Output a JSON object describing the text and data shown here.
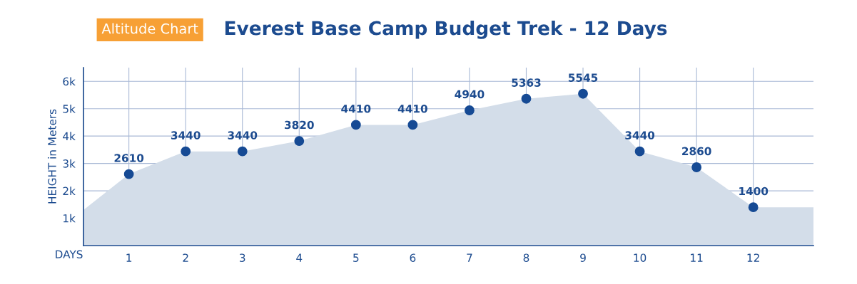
{
  "chart_data": {
    "type": "area",
    "title": "Everest Base Camp Budget Trek - 12 Days",
    "annotations": [
      "Altitude Chart"
    ],
    "xlabel": "DAYS",
    "ylabel": "HEIGHT in Meters",
    "series": [
      {
        "color": "#d3dde9",
        "x": [
          0.2,
          1,
          2,
          3,
          4,
          5,
          6,
          7,
          8,
          9,
          10,
          11,
          12,
          13.06
        ],
        "values": [
          1300,
          2610,
          3440,
          3440,
          3820,
          4410,
          4410,
          4940,
          5363,
          5545,
          3440,
          2860,
          1400,
          1400
        ]
      },
      {
        "type": "scatter",
        "marker": "circle",
        "color": "#164a94",
        "x": [
          1,
          2,
          3,
          4,
          5,
          6,
          7,
          8,
          9,
          10,
          11,
          12
        ],
        "values": [
          2610,
          3440,
          3440,
          3820,
          4410,
          4410,
          4940,
          5363,
          5545,
          3440,
          2860,
          1400
        ],
        "value_labels": [
          "2610",
          "3440",
          "3440",
          "3820",
          "4410",
          "4410",
          "4940",
          "5363",
          "5545",
          "3440",
          "2860",
          "1400"
        ]
      }
    ],
    "xlim": [
      0.2,
      13.06
    ],
    "xticks": [
      1,
      2,
      3,
      4,
      5,
      6,
      7,
      8,
      9,
      10,
      11,
      12
    ],
    "ylim": [
      0,
      6500
    ],
    "yticks": [
      {
        "value": 1000,
        "label": "1k"
      },
      {
        "value": 2000,
        "label": "2k"
      },
      {
        "value": 3000,
        "label": "3k"
      },
      {
        "value": 4000,
        "label": "4k"
      },
      {
        "value": 5000,
        "label": "5k"
      },
      {
        "value": 6000,
        "label": "6k"
      }
    ],
    "grid": true,
    "legend": false
  }
}
